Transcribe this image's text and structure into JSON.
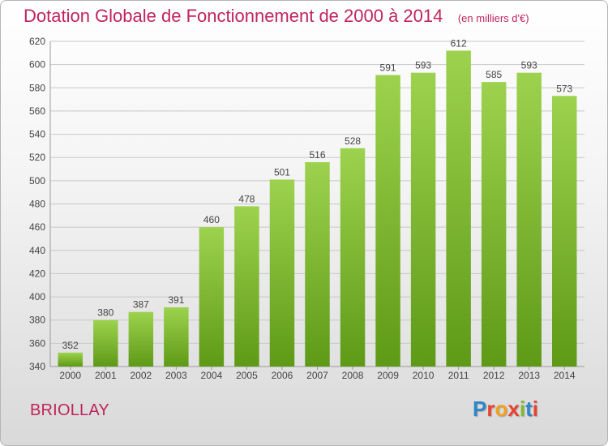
{
  "header": {
    "title": "Dotation Globale de Fonctionnement de 2000 à 2014",
    "subtitle": "(en milliers d'€)"
  },
  "footer": {
    "place": "BRIOLLAY",
    "logo": "Proxiti",
    "logo_colors": [
      "#2d87c8",
      "#e8412f",
      "#f0a11d",
      "#e8412f",
      "#82b92f",
      "#2d87c8",
      "#e8412f"
    ]
  },
  "colors": {
    "accent": "#c0245c",
    "bar_top": "#9dd24e",
    "bar_bottom": "#5e9a16",
    "gridline": "#c8c8c8"
  },
  "chart_data": {
    "type": "bar",
    "title": "Dotation Globale de Fonctionnement de 2000 à 2014",
    "subtitle": "(en milliers d'€)",
    "categories": [
      "2000",
      "2001",
      "2002",
      "2003",
      "2004",
      "2005",
      "2006",
      "2007",
      "2008",
      "2009",
      "2010",
      "2011",
      "2012",
      "2013",
      "2014"
    ],
    "values": [
      352,
      380,
      387,
      391,
      460,
      478,
      501,
      516,
      528,
      591,
      593,
      612,
      585,
      593,
      573
    ],
    "ylim": [
      340,
      620
    ],
    "yticks": [
      340,
      360,
      380,
      400,
      420,
      440,
      460,
      480,
      500,
      520,
      540,
      560,
      580,
      600,
      620
    ],
    "grid": true,
    "data_labels": true
  }
}
